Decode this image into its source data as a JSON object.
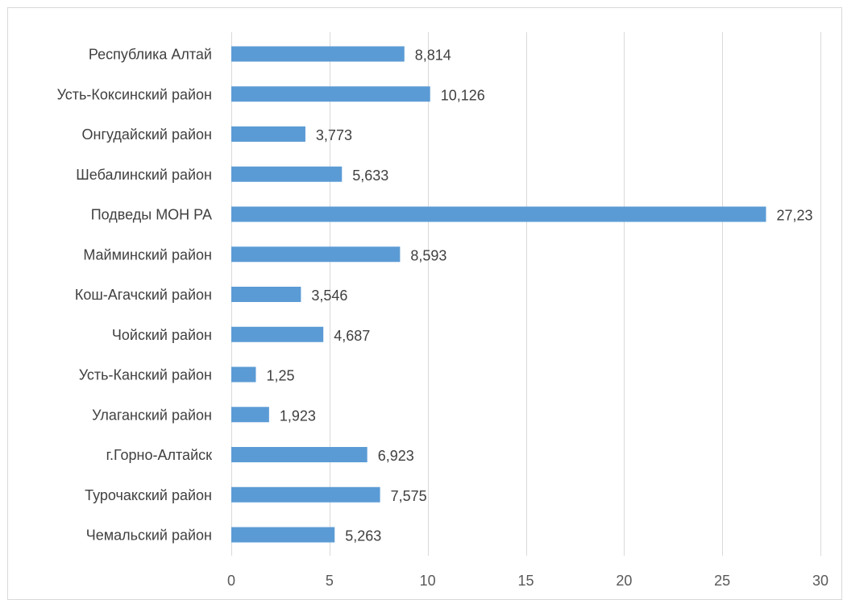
{
  "chart_data": {
    "type": "bar",
    "orientation": "horizontal",
    "categories": [
      "Республика Алтай",
      "Усть-Коксинский район",
      "Онгудайский район",
      "Шебалинский район",
      "Подведы МОН РА",
      "Майминский район",
      "Кош-Агачский район",
      "Чойский район",
      "Усть-Канский район",
      "Улаганский район",
      "г.Горно-Алтайск",
      "Турочакский район",
      "Чемальский район"
    ],
    "values": [
      8.814,
      10.126,
      3.773,
      5.633,
      27.23,
      8.593,
      3.546,
      4.687,
      1.25,
      1.923,
      6.923,
      7.575,
      5.263
    ],
    "value_labels": [
      "8,814",
      "10,126",
      "3,773",
      "5,633",
      "27,23",
      "8,593",
      "3,546",
      "4,687",
      "1,25",
      "1,923",
      "6,923",
      "7,575",
      "5,263"
    ],
    "xticks": [
      "0",
      "5",
      "10",
      "15",
      "20",
      "25",
      "30"
    ],
    "xlim": [
      0,
      30
    ],
    "title": "",
    "xlabel": "",
    "ylabel": "",
    "grid": "vertical",
    "legend": "none",
    "bar_color": "#5b9bd5",
    "grid_color": "#d9d9d9",
    "text_color": "#404040"
  }
}
